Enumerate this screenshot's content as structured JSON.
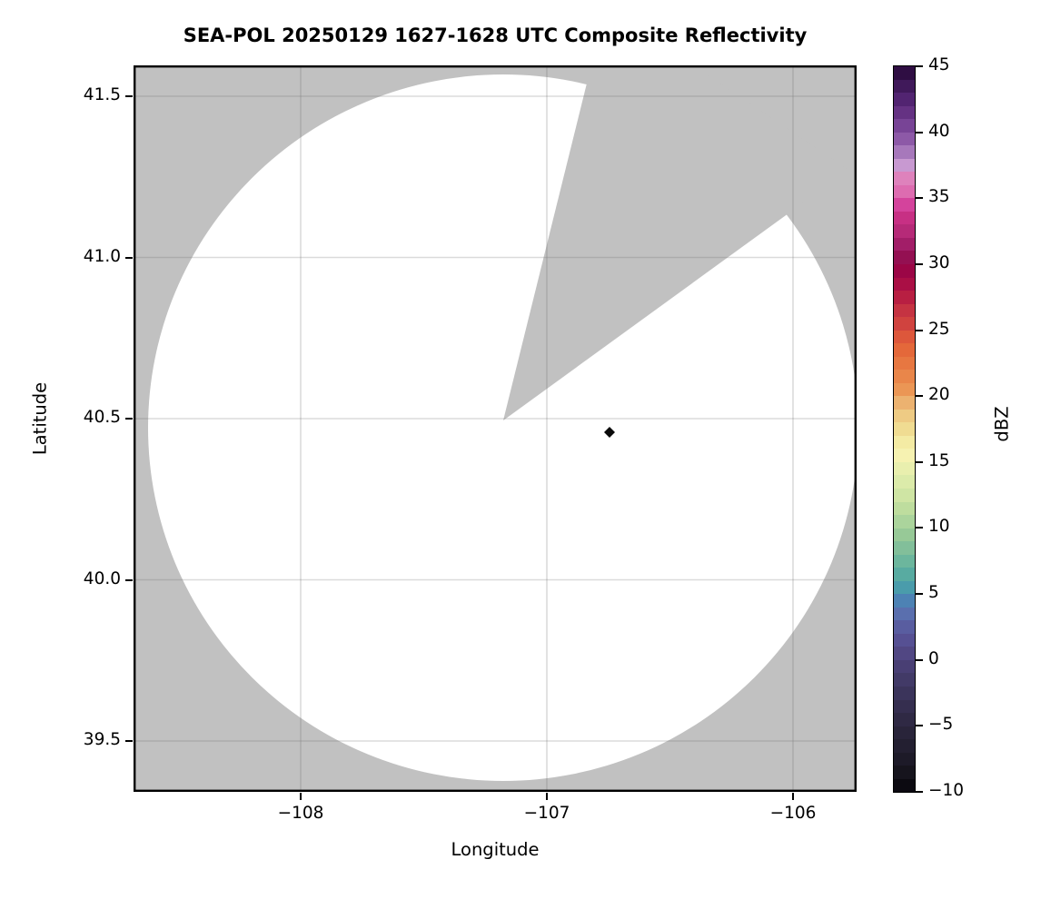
{
  "title": "SEA-POL 20250129 1627-1628 UTC Composite Reflectivity",
  "axes": {
    "xlabel": "Longitude",
    "ylabel": "Latitude",
    "x_tick_labels": [
      "−108",
      "−107",
      "−106"
    ],
    "y_tick_labels": [
      "41.5",
      "41.0",
      "40.5",
      "40.0",
      "39.5"
    ]
  },
  "colorbar": {
    "label": "dBZ",
    "tick_labels": [
      "45",
      "40",
      "35",
      "30",
      "25",
      "20",
      "15",
      "10",
      "5",
      "0",
      "−5",
      "−10"
    ],
    "min": -10,
    "max": 45,
    "band_step_dbz": 1,
    "band_colors_top_to_bottom": [
      "#2f0e43",
      "#40195a",
      "#522471",
      "#653283",
      "#784496",
      "#8d59a7",
      "#a778bb",
      "#c899d1",
      "#de82bc",
      "#dd6cb0",
      "#d4439c",
      "#c73084",
      "#b62a78",
      "#a21e68",
      "#941052",
      "#9b0646",
      "#aa0f45",
      "#b81f42",
      "#c53342",
      "#d0433f",
      "#dd573b",
      "#e4683a",
      "#e77741",
      "#e9864a",
      "#eb9655",
      "#ecb270",
      "#eecb84",
      "#f0dc92",
      "#f4eba4",
      "#f6f2b1",
      "#e9efae",
      "#dcebaa",
      "#cfe5a4",
      "#bedd9e",
      "#abd49c",
      "#97c997",
      "#82bf9a",
      "#6cb69d",
      "#58aba1",
      "#4a9cab",
      "#4d82b4",
      "#5a6fae",
      "#595da0",
      "#565093",
      "#514783",
      "#493f74",
      "#423a67",
      "#3b345b",
      "#352e4f",
      "#2f2944",
      "#29243a",
      "#231f31",
      "#1d1a28",
      "#16141d",
      "#0c0a11"
    ]
  },
  "colors": {
    "no_coverage_gray": "#c1c1c1",
    "coverage_white": "#ffffff",
    "gridline": "rgba(110,110,110,0.25)",
    "spine": "#000000",
    "echo_marker": "#0a0a0a"
  },
  "chart_data": {
    "type": "heatmap",
    "subtype": "radar-composite-reflectivity-ppi",
    "title": "SEA-POL 20250129 1627-1628 UTC Composite Reflectivity",
    "xlabel": "Longitude",
    "ylabel": "Latitude",
    "xlim": [
      -108.68,
      -105.74
    ],
    "ylim": [
      39.34,
      41.6
    ],
    "x_ticks": [
      -108,
      -107,
      -106
    ],
    "y_ticks": [
      39.5,
      40.0,
      40.5,
      41.0,
      41.5
    ],
    "grid": true,
    "colorbar": {
      "label": "dBZ",
      "min": -10,
      "max": 45,
      "tick_step": 5
    },
    "radar": {
      "center_lon": -107.18,
      "center_lat": 40.49,
      "coverage_radius_deg_lat": 1.1,
      "coverage_shape": "circle of ~120 km range, shown white (no echo)",
      "blocked_sector_azimuth_deg": [
        14,
        54
      ],
      "blocked_sector_note": "wedge from radar center with no data, shown gray"
    },
    "echoes": [
      {
        "lon": -106.75,
        "lat": 40.45,
        "dbz_approx": -10,
        "marker": "small black diamond"
      }
    ],
    "background_note": "area outside radar coverage is gray (no data)"
  }
}
